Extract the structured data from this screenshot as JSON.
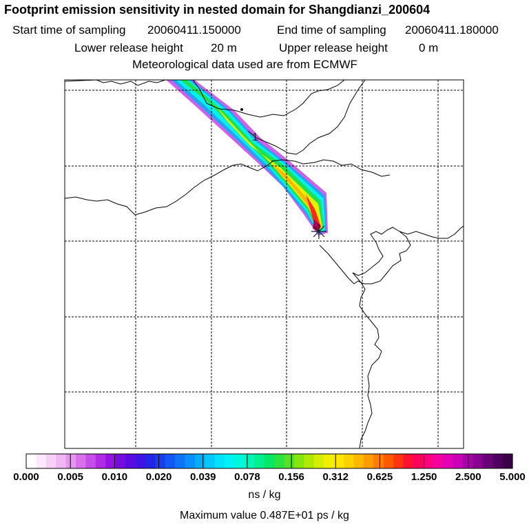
{
  "title": "Footprint emission sensitivity in nested domain for Shangdianzi_200604",
  "header": {
    "start_label": "Start time of sampling",
    "start_value": "20060411.150000",
    "end_label": "End time of sampling",
    "end_value": "20060411.180000",
    "lower_label": "Lower release height",
    "lower_value": "20 m",
    "upper_label": "Upper release height",
    "upper_value": "0 m",
    "met_line": "Meteorological data used are from ECMWF"
  },
  "chart_data": {
    "type": "heatmap",
    "title": "Footprint emission sensitivity in nested domain for Shangdianzi_200604",
    "colorbar_ticks": [
      "0.000",
      "0.005",
      "0.010",
      "0.020",
      "0.039",
      "0.078",
      "0.156",
      "0.312",
      "0.625",
      "1.250",
      "2.500",
      "5.000"
    ],
    "colorbar_unit": "ns / kg",
    "max_value_text": "Maximum value  0.487E+01 ps / kg",
    "contour_label": "1",
    "colorbar_colors": [
      "#ffffff",
      "#fbe8fb",
      "#f6d0f7",
      "#efb6f3",
      "#e596ef",
      "#d870ec",
      "#c64de9",
      "#b12ae6",
      "#9514e3",
      "#760be0",
      "#5a0ce0",
      "#3d14e3",
      "#2424e8",
      "#1a3cef",
      "#1457f4",
      "#0f73f8",
      "#0b90fb",
      "#07adfd",
      "#04c8fe",
      "#02e1fe",
      "#00f2f5",
      "#00f7d9",
      "#00f5b6",
      "#00f08e",
      "#04e866",
      "#2ae342",
      "#58e024",
      "#86e40f",
      "#b0ea04",
      "#d4f000",
      "#f0f000",
      "#ffe600",
      "#ffd100",
      "#ffb800",
      "#ff9c00",
      "#ff7d00",
      "#ff5a00",
      "#ff3410",
      "#ff1230",
      "#ff005a",
      "#ff0080",
      "#f500a0",
      "#e200b4",
      "#c800b8",
      "#a800a8",
      "#880090",
      "#6a0078",
      "#500060",
      "#3a0048"
    ]
  }
}
